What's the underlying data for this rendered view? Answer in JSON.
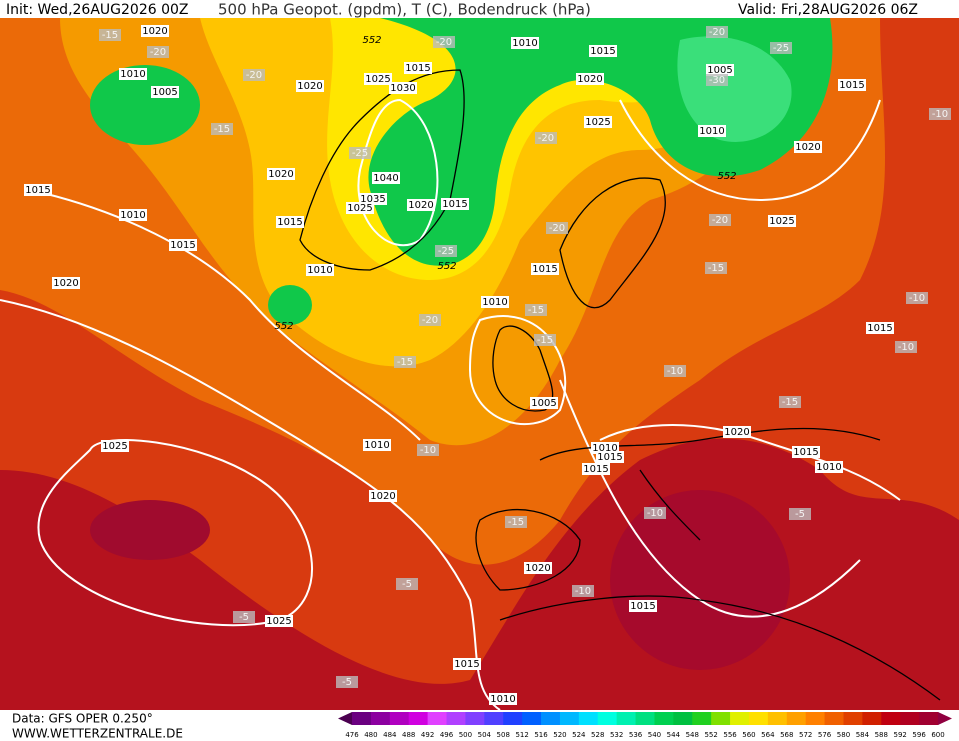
{
  "header": {
    "init": "Init: Wed,26AUG2026 00Z",
    "title": "500 hPa Geopot. (gpdm), T (C), Bodendruck (hPa)",
    "valid": "Valid: Fri,28AUG2026 06Z"
  },
  "footer": {
    "source": "Data: GFS OPER 0.250°",
    "site": "WWW.WETTERZENTRALE.DE"
  },
  "pressure_labels": [
    "1020",
    "1010",
    "1005",
    "1020",
    "1025",
    "1030",
    "1015",
    "1010",
    "1015",
    "1020",
    "1025",
    "1005",
    "1010",
    "1015",
    "1020",
    "1025",
    "1015",
    "1010",
    "1015",
    "1020",
    "1015",
    "1040",
    "1035",
    "1025",
    "1020",
    "1015",
    "1010",
    "1020",
    "1015",
    "1010",
    "1005",
    "1010",
    "1025",
    "1020",
    "1010",
    "1015",
    "1015",
    "1020",
    "1015",
    "1010",
    "1015",
    "1020",
    "1015",
    "1025",
    "1015",
    "1010"
  ],
  "temperature_labels": [
    "-15",
    "-20",
    "-20",
    "-15",
    "-25",
    "-20",
    "-20",
    "-20",
    "-25",
    "-30",
    "-20",
    "-20",
    "-15",
    "-15",
    "-15",
    "-20",
    "-15",
    "-10",
    "-10",
    "-15",
    "-10",
    "-10",
    "-10",
    "-15",
    "-10",
    "-5",
    "-10",
    "-5",
    "-5",
    "-5",
    "-25"
  ],
  "height_labels": [
    "552",
    "552",
    "552",
    "552"
  ],
  "colorbar": {
    "labels": [
      476,
      480,
      484,
      488,
      492,
      496,
      500,
      504,
      508,
      512,
      516,
      520,
      524,
      528,
      532,
      536,
      540,
      544,
      548,
      552,
      556,
      560,
      564,
      568,
      572,
      576,
      580,
      584,
      588,
      592,
      596,
      600
    ],
    "colors": [
      "#4b0050",
      "#6a0080",
      "#8c00a0",
      "#b000c0",
      "#d000e0",
      "#e040ff",
      "#b040ff",
      "#8040ff",
      "#5040ff",
      "#2040ff",
      "#0060ff",
      "#0090ff",
      "#00b8ff",
      "#00e0ff",
      "#00ffe0",
      "#00f0b0",
      "#00e080",
      "#00d050",
      "#00c040",
      "#20d020",
      "#80e000",
      "#e0f000",
      "#ffe000",
      "#ffc000",
      "#ffa000",
      "#ff8000",
      "#f06000",
      "#e04000",
      "#d02000",
      "#c00010",
      "#b00020",
      "#a00030",
      "#900040"
    ]
  }
}
